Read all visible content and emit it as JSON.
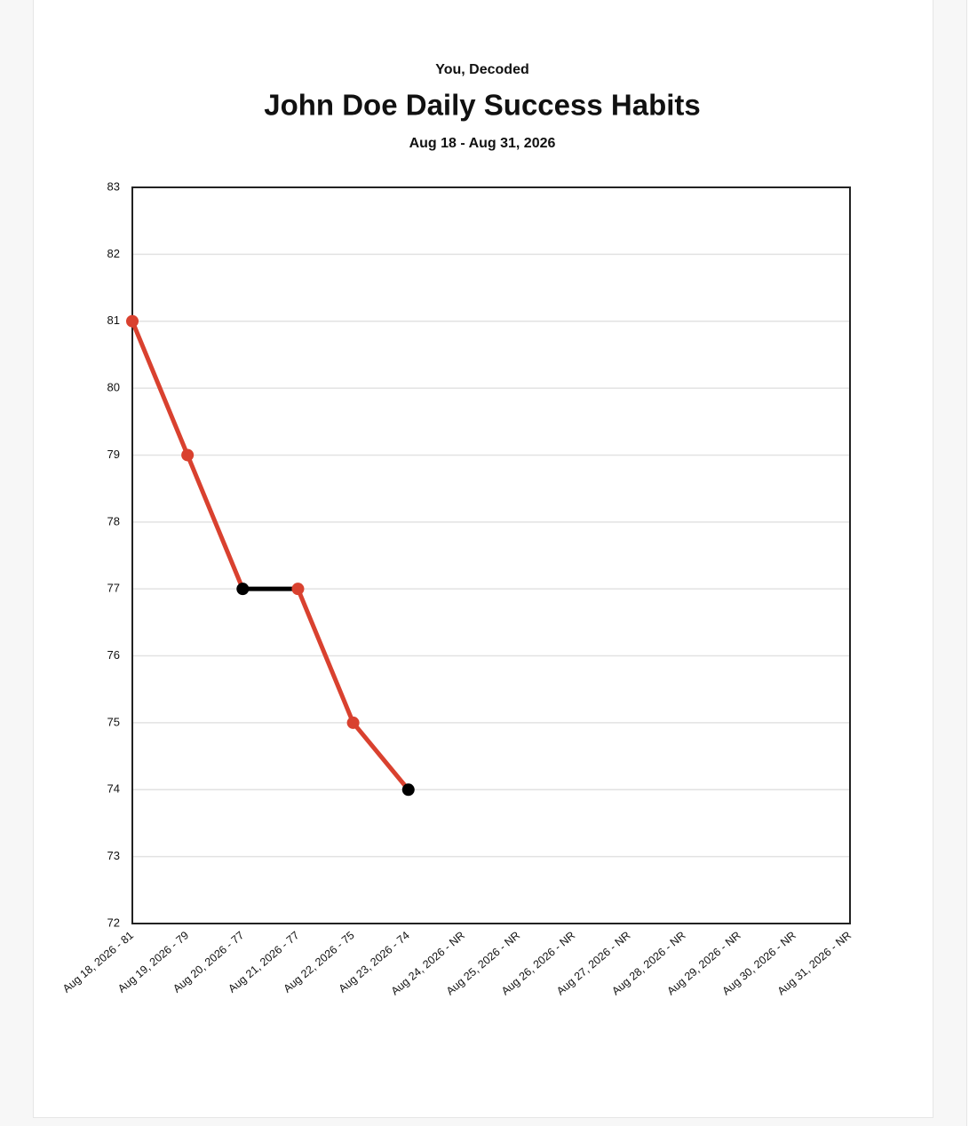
{
  "chart_data": {
    "type": "line",
    "kicker": "You, Decoded",
    "title": "John Doe Daily Success Habits",
    "subtitle": "Aug 18 - Aug 31, 2026",
    "categories": [
      "Aug 18, 2026 - 81",
      "Aug 19, 2026 - 79",
      "Aug 20, 2026 - 77",
      "Aug 21, 2026 - 77",
      "Aug 22, 2026 - 75",
      "Aug 23, 2026 - 74",
      "Aug 24, 2026 - NR",
      "Aug 25, 2026 - NR",
      "Aug 26, 2026 - NR",
      "Aug 27, 2026 - NR",
      "Aug 28, 2026 - NR",
      "Aug 29, 2026 - NR",
      "Aug 30, 2026 - NR",
      "Aug 31, 2026 - NR"
    ],
    "values": [
      81,
      79,
      77,
      77,
      75,
      74,
      null,
      null,
      null,
      null,
      null,
      null,
      null,
      null
    ],
    "point_colors": [
      "#d9412f",
      "#d9412f",
      "#000000",
      "#d9412f",
      "#d9412f",
      "#000000",
      null,
      null,
      null,
      null,
      null,
      null,
      null,
      null
    ],
    "segment_colors": [
      "#d9412f",
      "#d9412f",
      "#000000",
      "#d9412f",
      "#d9412f",
      null,
      null,
      null,
      null,
      null,
      null,
      null,
      null
    ],
    "ylim": [
      72,
      83
    ],
    "yticks": [
      72,
      73,
      74,
      75,
      76,
      77,
      78,
      79,
      80,
      81,
      82,
      83
    ],
    "grid": true
  }
}
